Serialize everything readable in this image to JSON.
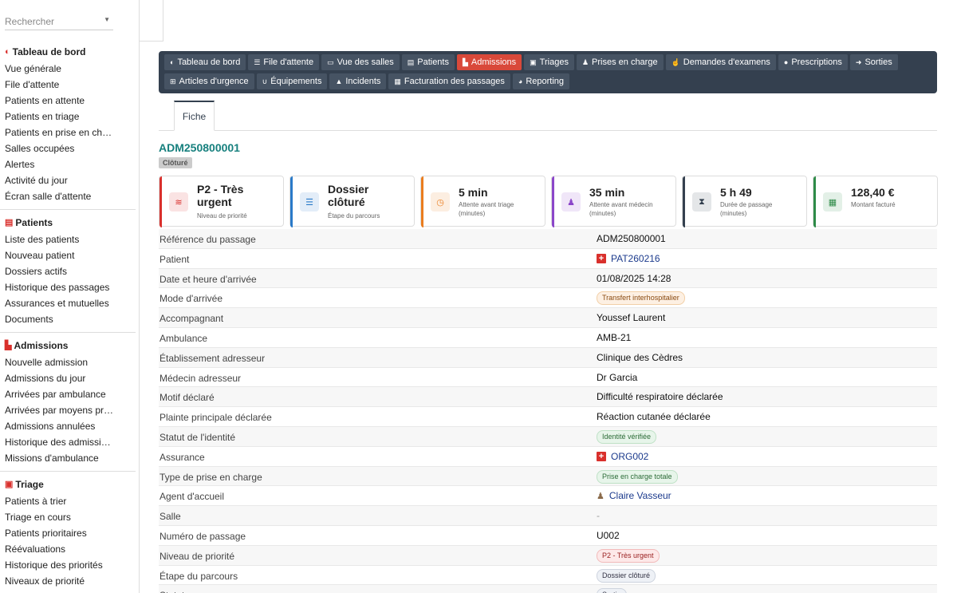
{
  "search": {
    "placeholder": "Rechercher"
  },
  "sidebar": {
    "groups": [
      {
        "title": "Tableau de bord",
        "icon": "dashboard-icon",
        "items": [
          "Vue générale",
          "File d'attente",
          "Patients en attente",
          "Patients en triage",
          "Patients en prise en charge",
          "Salles occupées",
          "Alertes",
          "Activité du jour",
          "Écran salle d'attente"
        ]
      },
      {
        "title": "Patients",
        "icon": "id-card-icon",
        "items": [
          "Liste des patients",
          "Nouveau patient",
          "Dossiers actifs",
          "Historique des passages",
          "Assurances et mutuelles",
          "Documents"
        ]
      },
      {
        "title": "Admissions",
        "icon": "admission-icon",
        "items": [
          "Nouvelle admission",
          "Admissions du jour",
          "Arrivées par ambulance",
          "Arrivées par moyens pro…",
          "Admissions annulées",
          "Historique des admissions",
          "Missions d'ambulance"
        ]
      },
      {
        "title": "Triage",
        "icon": "clipboard-icon",
        "items": [
          "Patients à trier",
          "Triage en cours",
          "Patients prioritaires",
          "Réévaluations",
          "Historique des priorités",
          "Niveaux de priorité"
        ]
      }
    ]
  },
  "nav": {
    "row1": [
      {
        "label": "Tableau de bord",
        "icon": "dashboard-icon"
      },
      {
        "label": "File d'attente",
        "icon": "list-icon"
      },
      {
        "label": "Vue des salles",
        "icon": "bed-icon"
      },
      {
        "label": "Patients",
        "icon": "id-card-icon"
      },
      {
        "label": "Admissions",
        "icon": "admission-icon",
        "active": true
      },
      {
        "label": "Triages",
        "icon": "clipboard-icon"
      },
      {
        "label": "Prises en charge",
        "icon": "user-doctor-icon"
      },
      {
        "label": "Demandes d'examens",
        "icon": "hand-icon"
      },
      {
        "label": "Prescriptions",
        "icon": "pills-icon"
      },
      {
        "label": "Sorties",
        "icon": "exit-icon"
      }
    ],
    "row2": [
      {
        "label": "Articles d'urgence",
        "icon": "sitemap-icon"
      },
      {
        "label": "Équipements",
        "icon": "stethoscope-icon"
      },
      {
        "label": "Incidents",
        "icon": "warning-icon"
      },
      {
        "label": "Facturation des passages",
        "icon": "invoice-icon"
      },
      {
        "label": "Reporting",
        "icon": "chart-pie-icon"
      }
    ]
  },
  "tabs": {
    "fiche": "Fiche"
  },
  "record": {
    "reference": "ADM250800001",
    "state": "Clôturé"
  },
  "cards": [
    {
      "value": "P2 - Très urgent",
      "sub": "Niveau de priorité",
      "color": "#d9302c",
      "icon": "layers-icon"
    },
    {
      "value": "Dossier clôturé",
      "sub": "Étape du parcours",
      "color": "#2a7ac9",
      "icon": "list-icon"
    },
    {
      "value": "5 min",
      "sub": "Attente avant triage (minutes)",
      "color": "#ea7d1f",
      "icon": "clock-icon"
    },
    {
      "value": "35 min",
      "sub": "Attente avant médecin (minutes)",
      "color": "#8b46c9",
      "icon": "user-doctor-icon"
    },
    {
      "value": "5 h 49",
      "sub": "Durée de passage (minutes)",
      "color": "#34404f",
      "icon": "hourglass-icon"
    },
    {
      "value": "128,40 €",
      "sub": "Montant facturé",
      "color": "#2e8b48",
      "icon": "invoice-icon"
    }
  ],
  "fields": [
    {
      "label": "Référence du passage",
      "value": "ADM250800001",
      "kind": "text"
    },
    {
      "label": "Patient",
      "value": "PAT260216",
      "kind": "link-red"
    },
    {
      "label": "Date et heure d'arrivée",
      "value": "01/08/2025 14:28",
      "kind": "text"
    },
    {
      "label": "Mode d'arrivée",
      "value": "Transfert interhospitalier",
      "kind": "pill-orange"
    },
    {
      "label": "Accompagnant",
      "value": "Youssef Laurent",
      "kind": "text"
    },
    {
      "label": "Ambulance",
      "value": "AMB-21",
      "kind": "text"
    },
    {
      "label": "Établissement adresseur",
      "value": "Clinique des Cèdres",
      "kind": "text"
    },
    {
      "label": "Médecin adresseur",
      "value": "Dr Garcia",
      "kind": "text"
    },
    {
      "label": "Motif déclaré",
      "value": "Difficulté respiratoire déclarée",
      "kind": "text"
    },
    {
      "label": "Plainte principale déclarée",
      "value": "Réaction cutanée déclarée",
      "kind": "text"
    },
    {
      "label": "Statut de l'identité",
      "value": "Identité vérifiée",
      "kind": "pill-green"
    },
    {
      "label": "Assurance",
      "value": "ORG002",
      "kind": "link-red"
    },
    {
      "label": "Type de prise en charge",
      "value": "Prise en charge totale",
      "kind": "pill-green"
    },
    {
      "label": "Agent d'accueil",
      "value": "Claire Vasseur",
      "kind": "link-user"
    },
    {
      "label": "Salle",
      "value": "-",
      "kind": "muted"
    },
    {
      "label": "Numéro de passage",
      "value": "U002",
      "kind": "text"
    },
    {
      "label": "Niveau de priorité",
      "value": "P2 - Très urgent",
      "kind": "pill-red"
    },
    {
      "label": "Étape du parcours",
      "value": "Dossier clôturé",
      "kind": "pill-grey"
    },
    {
      "label": "Statut",
      "value": "Sortie",
      "kind": "pill-grey"
    }
  ]
}
